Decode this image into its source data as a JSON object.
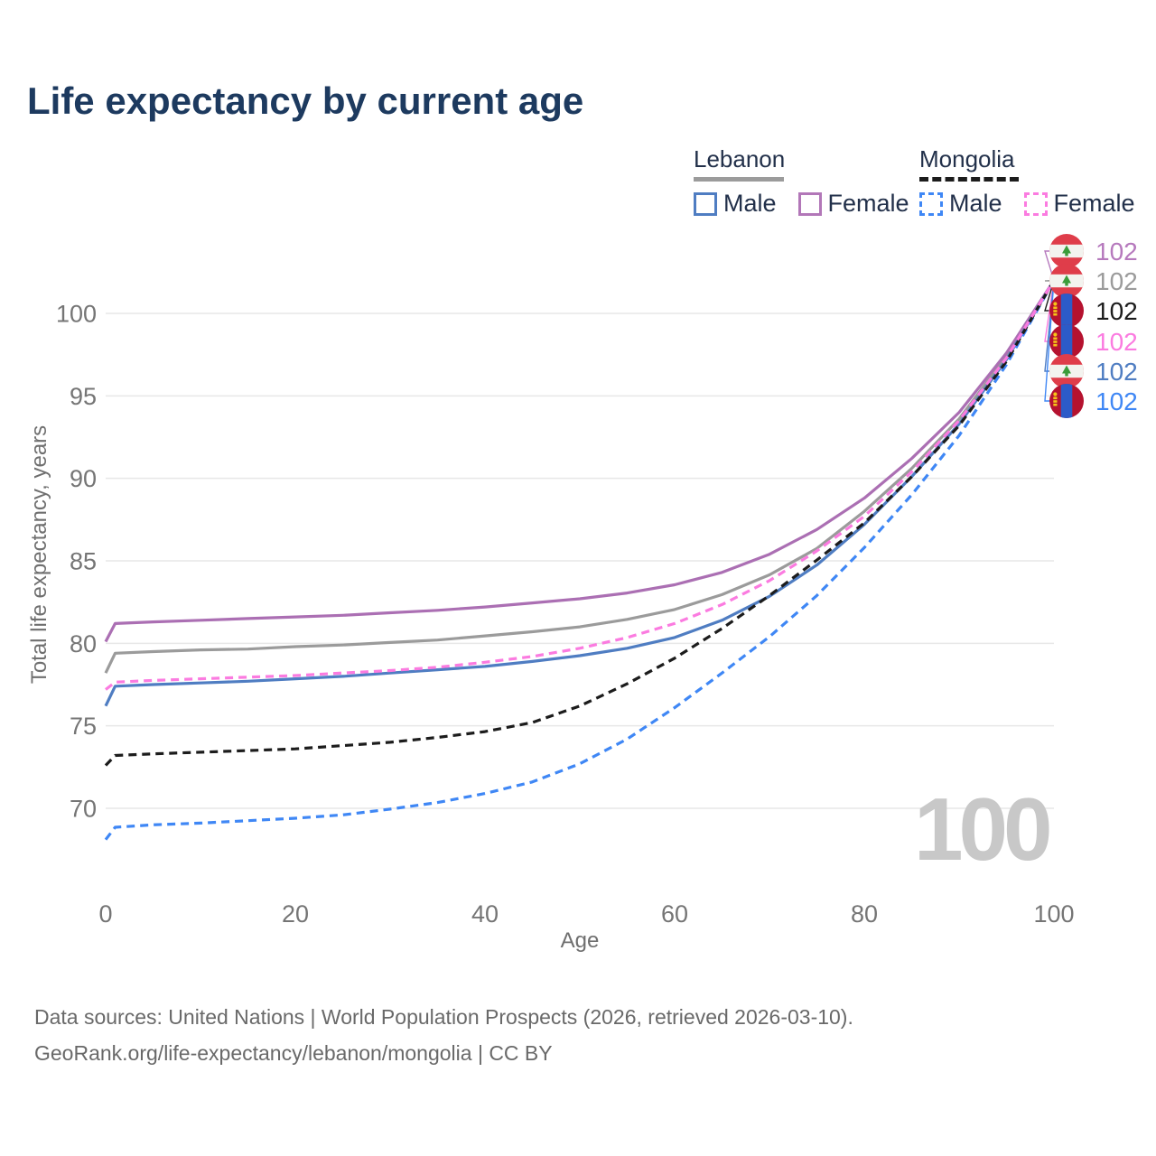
{
  "title": "Life expectancy by current age",
  "watermark": "100",
  "legend": {
    "groups": [
      {
        "country": "Lebanon",
        "line_style": "solid",
        "underline_color": "#9b9b9b",
        "items": [
          {
            "label": "Male",
            "color": "#4f7dc2"
          },
          {
            "label": "Female",
            "color": "#b277b8"
          }
        ]
      },
      {
        "country": "Mongolia",
        "line_style": "dashed",
        "underline_color": "#1c1c1c",
        "items": [
          {
            "label": "Male",
            "color": "#3f87f5"
          },
          {
            "label": "Female",
            "color": "#fb7be0"
          }
        ]
      }
    ]
  },
  "axes": {
    "x": {
      "label": "Age",
      "ticks": [
        0,
        20,
        40,
        60,
        80,
        100
      ]
    },
    "y": {
      "label": "Total life expectancy, years",
      "ticks": [
        70,
        75,
        80,
        85,
        90,
        95,
        100
      ]
    }
  },
  "chart_data": {
    "type": "line",
    "title": "Life expectancy by current age",
    "xlabel": "Age",
    "ylabel": "Total life expectancy, years",
    "xlim": [
      0,
      100
    ],
    "ylim": [
      67,
      103
    ],
    "grid": true,
    "legend_position": "top-right",
    "x": [
      0,
      1,
      5,
      10,
      15,
      20,
      25,
      30,
      35,
      40,
      45,
      50,
      55,
      60,
      65,
      70,
      75,
      80,
      85,
      90,
      95,
      100
    ],
    "series": [
      {
        "name": "Lebanon",
        "country": "Lebanon",
        "sex": "Both",
        "color": "#9b9b9b",
        "dashed": false,
        "values": [
          78.2,
          79.4,
          79.5,
          79.6,
          79.65,
          79.8,
          79.9,
          80.05,
          80.2,
          80.45,
          80.7,
          81.0,
          81.45,
          82.05,
          82.95,
          84.15,
          85.75,
          88.0,
          90.6,
          93.6,
          97.4,
          102
        ]
      },
      {
        "name": "Lebanon Female",
        "country": "Lebanon",
        "sex": "Female",
        "color": "#ab6fb3",
        "dashed": false,
        "values": [
          80.1,
          81.2,
          81.3,
          81.4,
          81.5,
          81.6,
          81.7,
          81.85,
          82.0,
          82.2,
          82.45,
          82.7,
          83.05,
          83.55,
          84.3,
          85.4,
          86.9,
          88.8,
          91.2,
          94.0,
          97.6,
          102
        ]
      },
      {
        "name": "Lebanon Male",
        "country": "Lebanon",
        "sex": "Male",
        "color": "#4f7dc2",
        "dashed": false,
        "values": [
          76.2,
          77.4,
          77.5,
          77.6,
          77.7,
          77.85,
          78.0,
          78.2,
          78.4,
          78.6,
          78.9,
          79.25,
          79.7,
          80.35,
          81.4,
          82.85,
          84.75,
          87.2,
          90.1,
          93.3,
          97.2,
          102
        ]
      },
      {
        "name": "Mongolia Male",
        "country": "Mongolia",
        "sex": "Male",
        "color": "#3f87f5",
        "dashed": true,
        "values": [
          68.1,
          68.85,
          69.0,
          69.1,
          69.25,
          69.4,
          69.6,
          69.95,
          70.35,
          70.9,
          71.6,
          72.7,
          74.2,
          76.1,
          78.2,
          80.4,
          82.9,
          85.8,
          89.0,
          92.6,
          96.9,
          102
        ]
      },
      {
        "name": "Mongolia",
        "country": "Mongolia",
        "sex": "Both",
        "color": "#1c1c1c",
        "dashed": true,
        "values": [
          72.6,
          73.2,
          73.3,
          73.4,
          73.5,
          73.6,
          73.8,
          74.0,
          74.3,
          74.65,
          75.2,
          76.2,
          77.55,
          79.1,
          80.9,
          82.9,
          85.05,
          87.3,
          90.1,
          93.2,
          97.1,
          102
        ]
      },
      {
        "name": "Mongolia Female",
        "country": "Mongolia",
        "sex": "Female",
        "color": "#fb7be0",
        "dashed": true,
        "values": [
          77.2,
          77.65,
          77.75,
          77.85,
          77.95,
          78.05,
          78.2,
          78.35,
          78.55,
          78.85,
          79.2,
          79.7,
          80.35,
          81.2,
          82.35,
          83.8,
          85.6,
          87.7,
          90.4,
          93.5,
          97.3,
          102
        ]
      }
    ],
    "end_labels": [
      {
        "value": "102",
        "series": "Lebanon Female",
        "flag": "lebanon",
        "color": "#b679bd"
      },
      {
        "value": "102",
        "series": "Lebanon",
        "flag": "lebanon",
        "color": "#9b9b9b"
      },
      {
        "value": "102",
        "series": "Mongolia",
        "flag": "mongolia",
        "color": "#1c1c1c"
      },
      {
        "value": "102",
        "series": "Mongolia Female",
        "flag": "mongolia",
        "color": "#fb7be0"
      },
      {
        "value": "102",
        "series": "Lebanon Male",
        "flag": "lebanon",
        "color": "#4f7dc2"
      },
      {
        "value": "102",
        "series": "Mongolia Male",
        "flag": "mongolia",
        "color": "#3f87f5"
      }
    ]
  },
  "sources": {
    "line1": "Data sources: United Nations | World Population Prospects (2026, retrieved 2026-03-10).",
    "line2": "GeoRank.org/life-expectancy/lebanon/mongolia | CC BY"
  },
  "colors": {
    "title_text": "#1d3a5f",
    "axis_text": "#6f6f6f",
    "tick_text": "#757575",
    "gridline": "#e7e7e7",
    "watermark": "#c8c8c8",
    "lebanon_flag_red": "#df3d4a",
    "lebanon_flag_white": "#f3f3ef",
    "lebanon_flag_green": "#3a9c3a",
    "mongolia_flag_red": "#b5122f",
    "mongolia_flag_blue": "#2c5bc8",
    "mongolia_flag_yellow": "#f5c518"
  }
}
